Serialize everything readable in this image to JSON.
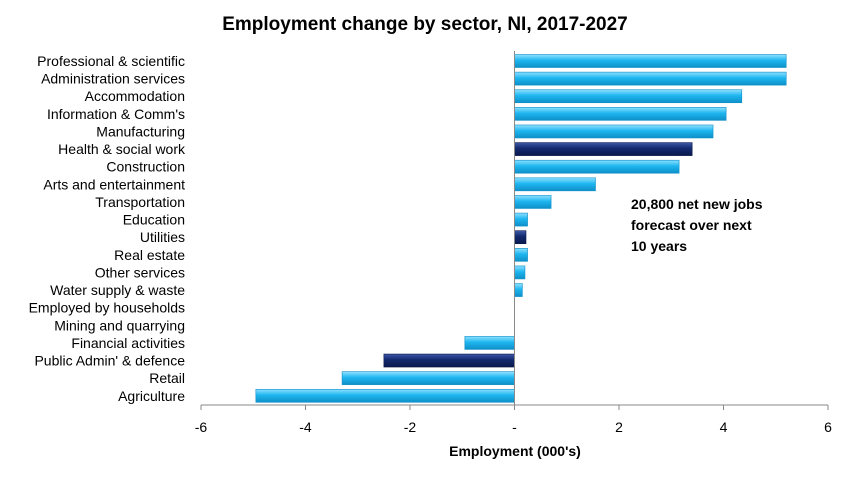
{
  "chart_data": {
    "type": "bar",
    "orientation": "horizontal",
    "title": "Employment change by sector, NI, 2017-2027",
    "xlabel": "Employment (000's)",
    "ylabel": "",
    "xlim": [
      -6,
      6
    ],
    "xticks": [
      -6,
      -4,
      -2,
      0,
      2,
      4,
      6
    ],
    "xtick_labels": [
      "-6",
      "-4",
      "-2",
      "-",
      "2",
      "4",
      "6"
    ],
    "grid": false,
    "annotation": [
      "20,800 net new jobs",
      "forecast over next",
      "10 years"
    ],
    "colors": {
      "default": "#1EB6F0",
      "highlight": "#13296E"
    },
    "categories": [
      "Professional & scientific",
      "Administration services",
      "Accommodation",
      "Information & Comm's",
      "Manufacturing",
      "Health & social work",
      "Construction",
      "Arts and entertainment",
      "Transportation",
      "Education",
      "Utilities",
      "Real estate",
      "Other services",
      "Water supply & waste",
      "Employed by households",
      "Mining and quarrying",
      "Financial activities",
      "Public Admin' & defence",
      "Retail",
      "Agriculture"
    ],
    "values": [
      5.2,
      5.2,
      4.35,
      4.05,
      3.8,
      3.4,
      3.15,
      1.55,
      0.7,
      0.25,
      0.22,
      0.25,
      0.2,
      0.15,
      0.0,
      0.0,
      -0.95,
      -2.5,
      -3.3,
      -4.95
    ],
    "highlighted": [
      "Health & social work",
      "Utilities",
      "Public Admin' & defence"
    ]
  }
}
